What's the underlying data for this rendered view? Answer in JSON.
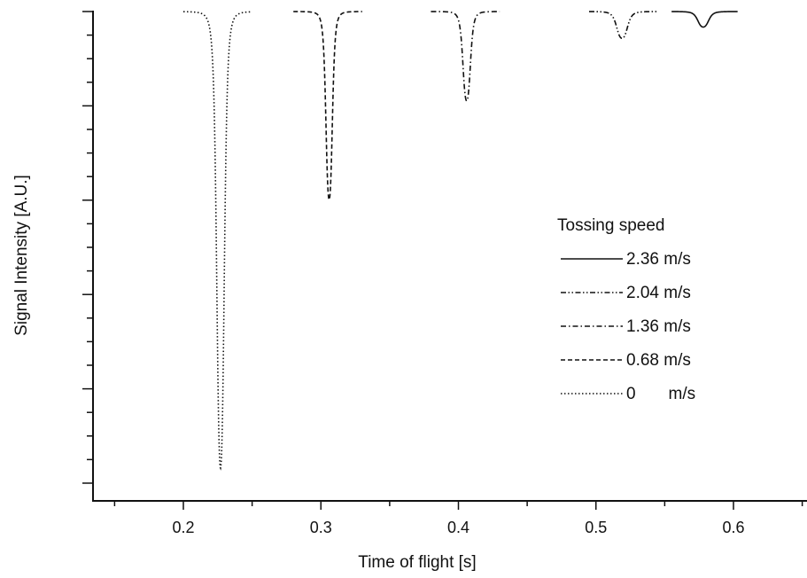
{
  "chart_data": {
    "type": "line",
    "title": "",
    "xlabel": "Time of flight [s]",
    "ylabel": "Signal Intensity [A.U.]",
    "xlim": [
      0.15,
      0.65
    ],
    "ylim": [
      -1.0,
      0.0
    ],
    "x_ticks": [
      0.2,
      0.3,
      0.4,
      0.5,
      0.6
    ],
    "x_tick_labels": [
      "0.2",
      "0.3",
      "0.4",
      "0.5",
      "0.6"
    ],
    "y_tick_labels_shown": false,
    "grid": false,
    "legend": {
      "title": "Tossing speed",
      "placement": "right-middle",
      "entries": [
        {
          "label": "2.36 m/s",
          "style": "solid"
        },
        {
          "label": "2.04 m/s",
          "style": "dash-dot-dot"
        },
        {
          "label": "1.36 m/s",
          "style": "dash-dot"
        },
        {
          "label": "0.68 m/s",
          "style": "dashed"
        },
        {
          "label": "0       m/s",
          "style": "dotted"
        }
      ]
    },
    "series": [
      {
        "speed": "0 m/s",
        "style": "dotted",
        "center": 0.227,
        "depth": 0.97,
        "width": 0.0035,
        "x_range": [
          0.2,
          0.25
        ]
      },
      {
        "speed": "0.68 m/s",
        "style": "dashed",
        "center": 0.306,
        "depth": 0.4,
        "width": 0.003,
        "x_range": [
          0.28,
          0.33
        ]
      },
      {
        "speed": "1.36 m/s",
        "style": "dash-dot",
        "center": 0.406,
        "depth": 0.19,
        "width": 0.0035,
        "x_range": [
          0.38,
          0.43
        ]
      },
      {
        "speed": "2.04 m/s",
        "style": "dash-dot-dot",
        "center": 0.519,
        "depth": 0.057,
        "width": 0.005,
        "x_range": [
          0.495,
          0.545
        ]
      },
      {
        "speed": "2.36 m/s",
        "style": "solid",
        "center": 0.578,
        "depth": 0.033,
        "width": 0.005,
        "x_range": [
          0.555,
          0.603
        ]
      }
    ]
  }
}
